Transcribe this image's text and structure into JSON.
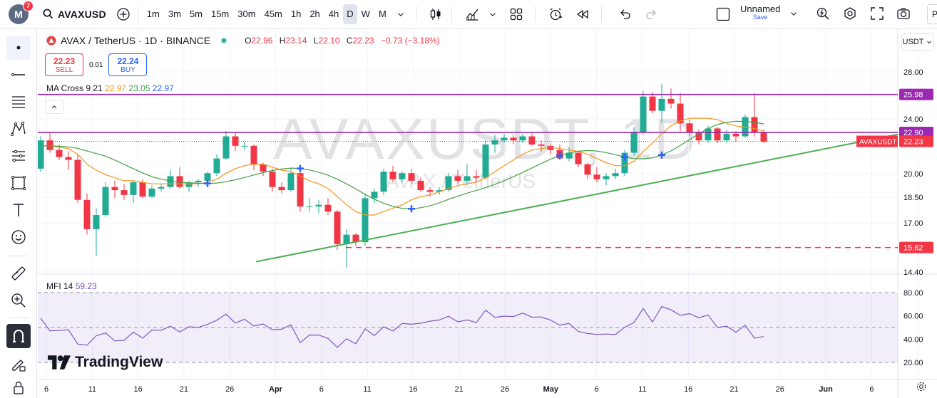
{
  "top_toolbar": {
    "avatar_letter": "M",
    "notifications": "7",
    "symbol": "AVAXUSD",
    "intervals": [
      "1m",
      "3m",
      "5m",
      "15m",
      "30m",
      "45m",
      "1h",
      "2h",
      "4h",
      "D",
      "W",
      "M"
    ],
    "active_interval": "D",
    "layout_name": "Unnamed",
    "layout_status": "Save",
    "publish_label": "Pu"
  },
  "legend": {
    "title": "AVAX / TetherUS · 1D · BINANCE",
    "open_label": "O",
    "open": "22.96",
    "high_label": "H",
    "high": "23.14",
    "low_label": "L",
    "low": "22.10",
    "close_label": "C",
    "close": "22.23",
    "change": "−0.73 (−3.18%)"
  },
  "trade": {
    "sell_price": "22.23",
    "sell_label": "SELL",
    "spread": "0.01",
    "buy_price": "22.24",
    "buy_label": "BUY"
  },
  "ma_cross": {
    "name": "MA Cross 9 21",
    "v1": "22.97",
    "v2": "23.05",
    "v3": "22.97"
  },
  "mfi": {
    "name": "MFI 14",
    "value": "59.23"
  },
  "watermark": {
    "main": "AVAXUSDT, 1D",
    "sub": "AVAX / TetherUS"
  },
  "branding": "TradingView",
  "currency": "USDT",
  "colors": {
    "up": "#22ab94",
    "down": "#f23645",
    "ma_fast": "#f7931a",
    "ma_slow": "#43a047",
    "level": "#9c27b0",
    "trend": "#4caf50",
    "mfi": "#7e57c2",
    "cross": "#2962ff"
  },
  "chart_data": {
    "type": "candlestick",
    "x_ticks": [
      "6",
      "11",
      "16",
      "21",
      "26",
      "Apr",
      "6",
      "11",
      "16",
      "21",
      "26",
      "May",
      "6",
      "11",
      "16",
      "21",
      "26",
      "Jun",
      "6"
    ],
    "y_ticks": [
      "28.00",
      "24.00",
      "20.00",
      "18.50",
      "17.00",
      "14.40"
    ],
    "mfi_ticks": [
      "80.00",
      "60.00",
      "40.00",
      "20.00"
    ],
    "price_labels": [
      {
        "text": "25.98",
        "value": 25.98,
        "color": "#9c27b0"
      },
      {
        "text": "22.90",
        "value": 22.9,
        "color": "#9c27b0"
      },
      {
        "text": "22.23",
        "value": 22.23,
        "color": "#f23645"
      },
      {
        "text": "15.62",
        "value": 15.62,
        "color": "#f23645"
      }
    ],
    "symbol_tag": "AVAXUSDT",
    "ma_cross_points": [
      18,
      28,
      40,
      56,
      63,
      67
    ],
    "candles": [
      [
        20.3,
        22.6,
        20.1,
        22.3
      ],
      [
        22.3,
        22.9,
        21.4,
        21.6
      ],
      [
        21.6,
        22.0,
        20.9,
        21.1
      ],
      [
        21.1,
        21.5,
        20.2,
        20.9
      ],
      [
        20.9,
        21.3,
        18.1,
        18.3
      ],
      [
        18.3,
        18.7,
        16.3,
        16.6
      ],
      [
        16.6,
        17.8,
        15.2,
        17.4
      ],
      [
        17.4,
        19.4,
        17.3,
        19.1
      ],
      [
        19.1,
        19.5,
        18.4,
        18.9
      ],
      [
        18.9,
        19.3,
        18.3,
        18.6
      ],
      [
        18.6,
        19.5,
        18.1,
        19.4
      ],
      [
        19.4,
        19.6,
        18.4,
        18.5
      ],
      [
        18.5,
        19.2,
        18.4,
        19.0
      ],
      [
        19.0,
        19.3,
        18.8,
        19.1
      ],
      [
        19.1,
        20.2,
        19.0,
        19.8
      ],
      [
        19.8,
        20.4,
        19.0,
        19.1
      ],
      [
        19.1,
        19.5,
        18.8,
        19.4
      ],
      [
        19.4,
        19.6,
        19.1,
        19.5
      ],
      [
        19.5,
        20.1,
        19.4,
        20.0
      ],
      [
        20.0,
        21.3,
        19.8,
        21.0
      ],
      [
        21.0,
        23.0,
        20.9,
        22.6
      ],
      [
        22.6,
        22.9,
        21.5,
        21.9
      ],
      [
        21.9,
        22.2,
        21.6,
        21.9
      ],
      [
        21.9,
        22.0,
        20.2,
        20.6
      ],
      [
        20.6,
        20.7,
        19.8,
        20.1
      ],
      [
        20.1,
        20.3,
        18.8,
        19.1
      ],
      [
        19.1,
        19.4,
        18.7,
        18.9
      ],
      [
        18.9,
        20.3,
        18.8,
        20.0
      ],
      [
        20.0,
        20.1,
        17.6,
        17.9
      ],
      [
        17.9,
        18.4,
        17.6,
        17.9
      ],
      [
        17.9,
        18.3,
        17.5,
        18.0
      ],
      [
        18.0,
        18.4,
        17.4,
        17.6
      ],
      [
        17.6,
        17.7,
        15.5,
        15.8
      ],
      [
        15.8,
        16.6,
        14.6,
        16.3
      ],
      [
        16.3,
        16.4,
        15.7,
        15.9
      ],
      [
        15.9,
        18.7,
        15.7,
        18.4
      ],
      [
        18.4,
        19.0,
        18.1,
        18.8
      ],
      [
        18.8,
        20.3,
        18.6,
        20.1
      ],
      [
        20.1,
        20.5,
        19.4,
        19.6
      ],
      [
        19.6,
        20.1,
        19.4,
        20.0
      ],
      [
        20.0,
        20.3,
        19.3,
        19.5
      ],
      [
        19.5,
        19.7,
        18.8,
        18.9
      ],
      [
        18.9,
        19.1,
        18.5,
        18.8
      ],
      [
        18.8,
        19.1,
        18.6,
        18.9
      ],
      [
        18.9,
        20.0,
        18.8,
        19.8
      ],
      [
        19.8,
        20.2,
        19.3,
        19.5
      ],
      [
        19.5,
        20.6,
        19.2,
        19.8
      ],
      [
        19.8,
        20.2,
        19.4,
        19.7
      ],
      [
        19.7,
        22.3,
        19.6,
        22.0
      ],
      [
        22.0,
        22.7,
        21.4,
        22.3
      ],
      [
        22.3,
        22.8,
        22.1,
        22.5
      ],
      [
        22.5,
        22.7,
        22.0,
        22.3
      ],
      [
        22.3,
        22.8,
        22.1,
        22.6
      ],
      [
        22.6,
        22.9,
        21.9,
        22.0
      ],
      [
        22.0,
        22.3,
        21.5,
        21.9
      ],
      [
        21.9,
        22.1,
        21.3,
        21.6
      ],
      [
        21.6,
        22.0,
        20.9,
        21.0
      ],
      [
        21.0,
        21.8,
        20.8,
        21.4
      ],
      [
        21.4,
        21.5,
        20.4,
        20.6
      ],
      [
        20.6,
        20.7,
        19.6,
        19.9
      ],
      [
        19.9,
        20.4,
        19.4,
        19.6
      ],
      [
        19.6,
        20.0,
        19.2,
        19.8
      ],
      [
        19.8,
        20.3,
        19.6,
        20.0
      ],
      [
        20.0,
        21.6,
        19.8,
        21.4
      ],
      [
        21.4,
        23.3,
        21.2,
        22.9
      ],
      [
        22.9,
        26.3,
        22.7,
        25.8
      ],
      [
        25.8,
        26.2,
        24.4,
        24.6
      ],
      [
        24.6,
        26.9,
        23.6,
        25.6
      ],
      [
        25.6,
        26.5,
        24.8,
        25.2
      ],
      [
        25.2,
        26.1,
        23.0,
        23.6
      ],
      [
        23.6,
        23.9,
        22.6,
        22.9
      ],
      [
        22.9,
        23.1,
        22.0,
        22.3
      ],
      [
        22.3,
        23.4,
        22.1,
        23.2
      ],
      [
        23.2,
        23.3,
        22.1,
        22.3
      ],
      [
        22.3,
        23.1,
        22.1,
        22.8
      ],
      [
        22.8,
        23.0,
        22.2,
        22.6
      ],
      [
        22.6,
        24.3,
        22.5,
        24.1
      ],
      [
        24.1,
        26.1,
        22.6,
        22.9
      ],
      [
        22.9,
        23.1,
        22.1,
        22.2
      ]
    ],
    "ma_fast": [
      21.9,
      21.9,
      21.8,
      21.7,
      21.3,
      20.6,
      20.2,
      19.9,
      19.7,
      19.5,
      19.5,
      19.4,
      19.3,
      19.3,
      19.3,
      19.3,
      19.3,
      19.3,
      19.4,
      19.6,
      20.0,
      20.3,
      20.5,
      20.6,
      20.6,
      20.4,
      20.2,
      20.1,
      19.8,
      19.5,
      19.3,
      19.0,
      18.5,
      18.0,
      17.6,
      17.4,
      17.4,
      17.6,
      17.8,
      18.0,
      18.3,
      18.5,
      18.6,
      18.8,
      19.0,
      19.2,
      19.3,
      19.4,
      19.7,
      20.1,
      20.5,
      20.9,
      21.3,
      21.6,
      21.7,
      21.8,
      21.7,
      21.6,
      21.5,
      21.3,
      21.0,
      20.7,
      20.5,
      20.5,
      20.8,
      21.5,
      22.1,
      22.8,
      23.4,
      23.8,
      24.0,
      24.0,
      24.0,
      23.9,
      23.6,
      23.4,
      23.3,
      23.2,
      23.0
    ]
  }
}
